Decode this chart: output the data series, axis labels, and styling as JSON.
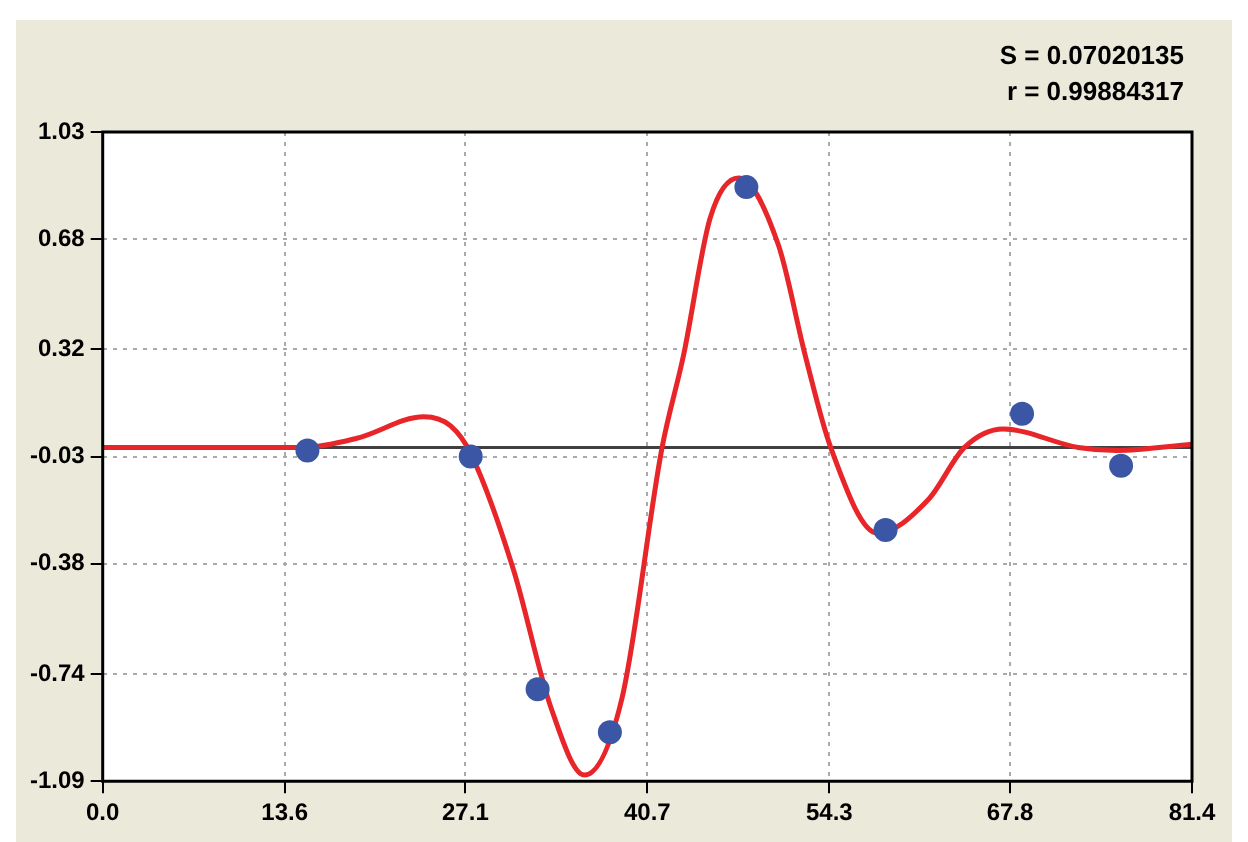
{
  "chart_data": {
    "type": "scatter",
    "xlim": [
      0,
      81.4
    ],
    "xticks": [
      {
        "value": 0,
        "label": "0.0"
      },
      13.6,
      27.1,
      40.7,
      54.3,
      67.8,
      81.4
    ],
    "ylim": [
      -1.09,
      1.03
    ],
    "yticks": [
      -1.09,
      -0.74,
      -0.38,
      -0.03,
      0.32,
      0.68,
      1.03
    ],
    "grid": true,
    "legend": false,
    "marker": "circle",
    "ref_lines": [
      {
        "axis": "y",
        "value": 0,
        "color": "#404040"
      }
    ],
    "annotations": [
      "S = 0.07020135",
      "r = 0.99884317"
    ],
    "series": [
      {
        "color": "#3a56a5",
        "x": [
          15.3,
          27.5,
          32.5,
          37.9,
          48.1,
          58.5,
          68.7,
          76.1
        ],
        "values": [
          -0.01,
          -0.03,
          -0.79,
          -0.93,
          0.85,
          -0.27,
          0.11,
          -0.06
        ]
      },
      {
        "type": "line",
        "color": "#e8262a",
        "marker": "none",
        "x": [
          0,
          15,
          19,
          24,
          26,
          27.5,
          30.7,
          33.5,
          36,
          38.8,
          41.8,
          43.4,
          45.4,
          47.5,
          50.5,
          52.5,
          54.4,
          57.9,
          61.7,
          64.4,
          67.3,
          72.9,
          75.8,
          81.4
        ],
        "values": [
          0,
          0,
          0.03,
          0.1,
          0.07,
          -0.02,
          -0.4,
          -0.85,
          -1.07,
          -0.82,
          0,
          0.3,
          0.75,
          0.88,
          0.66,
          0.3,
          0,
          -0.28,
          -0.17,
          0,
          0.06,
          0,
          -0.01,
          0.01
        ]
      }
    ]
  }
}
